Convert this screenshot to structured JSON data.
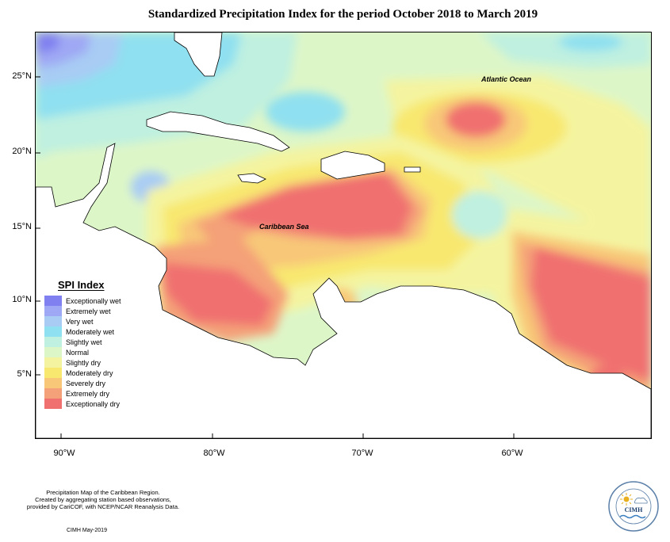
{
  "title": "Standardized Precipitation Index for the period October 2018 to March 2019",
  "map_labels": {
    "atlantic": "Atlantic Ocean",
    "caribbean": "Caribbean Sea"
  },
  "axes": {
    "lat_ticks": [
      "25°N",
      "20°N",
      "15°N",
      "10°N",
      "5°N"
    ],
    "lon_ticks": [
      "90°W",
      "80°W",
      "70°W",
      "60°W"
    ]
  },
  "legend": {
    "title": "SPI Index",
    "items": [
      {
        "label": "Exceptionally wet",
        "color": "#8080f0"
      },
      {
        "label": "Extremely wet",
        "color": "#9fa8f4"
      },
      {
        "label": "Very wet",
        "color": "#a8ccf4"
      },
      {
        "label": "Moderately wet",
        "color": "#8fe0f0"
      },
      {
        "label": "Slightly wet",
        "color": "#bff0e0"
      },
      {
        "label": "Normal",
        "color": "#ddf6c8"
      },
      {
        "label": "Slightly dry",
        "color": "#f4f4a0"
      },
      {
        "label": "Moderately dry",
        "color": "#f8e870"
      },
      {
        "label": "Severely dry",
        "color": "#f8c878"
      },
      {
        "label": "Extremely dry",
        "color": "#f4a078"
      },
      {
        "label": "Exceptionally dry",
        "color": "#f07070"
      }
    ]
  },
  "credit": {
    "line1": "Precipitation Map of the Caribbean Region.",
    "line2": "Created by aggregating station based observations,",
    "line3": "provided by CariCOF, with NCEP/NCAR Reanalysis Data.",
    "signature": "CIMH May-2019"
  },
  "logo": {
    "text": "CIMH"
  }
}
